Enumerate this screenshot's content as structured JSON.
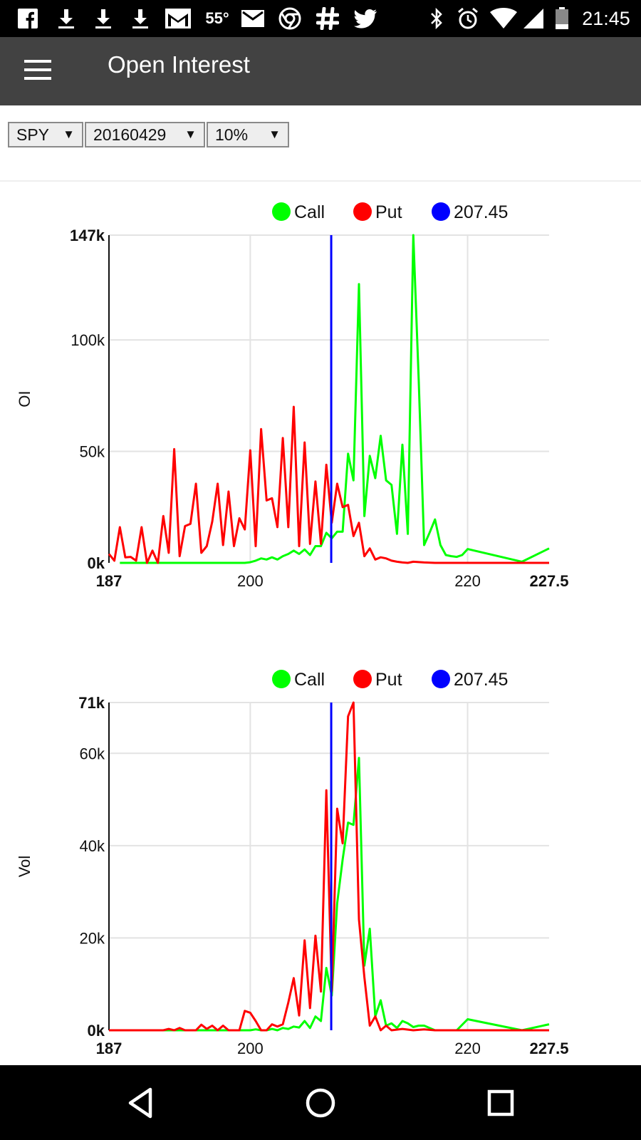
{
  "status_bar": {
    "left_icons": [
      "facebook-icon",
      "download-icon",
      "download-icon",
      "download-icon",
      "gmail-icon"
    ],
    "temperature": "55°",
    "right_icons": [
      "mail-icon",
      "chrome-icon",
      "slack-icon",
      "twitter-icon",
      "bluetooth-icon",
      "alarm-icon",
      "wifi-icon",
      "signal-icon",
      "battery-icon"
    ],
    "time": "21:45"
  },
  "app_bar": {
    "title": "Open Interest"
  },
  "filters": {
    "symbol": "SPY",
    "expiry": "20160429",
    "range": "10%"
  },
  "colors": {
    "call": "#00ff00",
    "put": "#ff0000",
    "price": "#0000ff"
  },
  "chart_data": [
    {
      "type": "line",
      "ylabel": "OI",
      "legend": [
        "Call",
        "Put",
        "207.45"
      ],
      "xlim": [
        187,
        227.5
      ],
      "ylim": [
        0,
        147000
      ],
      "x_ticks": [
        {
          "value": 187,
          "label": "187",
          "bold": true
        },
        {
          "value": 200,
          "label": "200",
          "bold": false
        },
        {
          "value": 220,
          "label": "220",
          "bold": false
        },
        {
          "value": 227.5,
          "label": "227.5",
          "bold": true
        }
      ],
      "y_ticks": [
        {
          "value": 0,
          "label": "0k",
          "bold": true
        },
        {
          "value": 50000,
          "label": "50k",
          "bold": false
        },
        {
          "value": 100000,
          "label": "100k",
          "bold": false
        },
        {
          "value": 147000,
          "label": "147k",
          "bold": true
        }
      ],
      "reference_line": {
        "name": "207.45",
        "x": 207.45
      },
      "series": [
        {
          "name": "Call",
          "x": [
            188,
            188.5,
            189,
            189.5,
            190,
            190.5,
            191,
            191.5,
            192,
            192.5,
            193,
            193.5,
            194,
            194.5,
            195,
            195.5,
            196,
            196.5,
            197,
            197.5,
            198,
            198.5,
            199,
            199.5,
            200,
            200.5,
            201,
            201.5,
            202,
            202.5,
            203,
            203.5,
            204,
            204.5,
            205,
            205.5,
            206,
            206.5,
            207,
            207.5,
            208,
            208.5,
            209,
            209.5,
            210,
            210.5,
            211,
            211.5,
            212,
            212.5,
            213,
            213.5,
            214,
            214.5,
            215,
            215.5,
            216,
            216.5,
            217,
            217.5,
            218,
            218.5,
            219,
            219.5,
            220,
            225,
            227.5
          ],
          "values": [
            0,
            0,
            0,
            0,
            0,
            0,
            0,
            0,
            0,
            0,
            0,
            0,
            0,
            0,
            0,
            0,
            0,
            0,
            0,
            0,
            0,
            0,
            0,
            0,
            300,
            1000,
            2000,
            1500,
            2500,
            1500,
            3000,
            4000,
            5500,
            4000,
            6000,
            3500,
            7500,
            7500,
            13500,
            11000,
            14000,
            14000,
            49000,
            37000,
            125000,
            21000,
            48000,
            38000,
            57000,
            37000,
            35000,
            13000,
            53000,
            13000,
            147000,
            82000,
            8000,
            13500,
            19500,
            8000,
            3500,
            3000,
            2700,
            3500,
            6200,
            500,
            6500
          ]
        },
        {
          "name": "Put",
          "x": [
            187,
            187.5,
            188,
            188.5,
            189,
            189.5,
            190,
            190.5,
            191,
            191.5,
            192,
            192.5,
            193,
            193.5,
            194,
            194.5,
            195,
            195.5,
            196,
            196.5,
            197,
            197.5,
            198,
            198.5,
            199,
            199.5,
            200,
            200.5,
            201,
            201.5,
            202,
            202.5,
            203,
            203.5,
            204,
            204.5,
            205,
            205.5,
            206,
            206.5,
            207,
            207.5,
            208,
            208.5,
            209,
            209.5,
            210,
            210.5,
            211,
            211.5,
            212,
            212.5,
            213,
            213.5,
            214,
            214.5,
            215,
            216,
            217,
            218,
            219,
            220,
            227.5
          ],
          "values": [
            4000,
            1000,
            16000,
            2500,
            2700,
            1000,
            16000,
            0,
            5500,
            0,
            21000,
            4500,
            51000,
            3000,
            16500,
            17500,
            35500,
            4500,
            7500,
            18500,
            35500,
            8000,
            32000,
            7500,
            20000,
            15000,
            50500,
            7500,
            60000,
            28000,
            29000,
            16000,
            56000,
            16000,
            70000,
            7500,
            54000,
            8500,
            36500,
            8500,
            44000,
            18000,
            35500,
            25000,
            26000,
            12000,
            18000,
            3000,
            6500,
            1500,
            2500,
            2000,
            1000,
            500,
            200,
            0,
            500,
            200,
            0,
            0,
            0,
            0,
            0
          ]
        }
      ]
    },
    {
      "type": "line",
      "ylabel": "Vol",
      "legend": [
        "Call",
        "Put",
        "207.45"
      ],
      "xlim": [
        187,
        227.5
      ],
      "ylim": [
        0,
        71000
      ],
      "x_ticks": [
        {
          "value": 187,
          "label": "187",
          "bold": true
        },
        {
          "value": 200,
          "label": "200",
          "bold": false
        },
        {
          "value": 220,
          "label": "220",
          "bold": false
        },
        {
          "value": 227.5,
          "label": "227.5",
          "bold": true
        }
      ],
      "y_ticks": [
        {
          "value": 0,
          "label": "0k",
          "bold": true
        },
        {
          "value": 20000,
          "label": "20k",
          "bold": false
        },
        {
          "value": 40000,
          "label": "40k",
          "bold": false
        },
        {
          "value": 60000,
          "label": "60k",
          "bold": false
        },
        {
          "value": 71000,
          "label": "71k",
          "bold": true
        }
      ],
      "reference_line": {
        "name": "207.45",
        "x": 207.45
      },
      "series": [
        {
          "name": "Call",
          "x": [
            187,
            190,
            195,
            199,
            200,
            200.5,
            201,
            201.5,
            202,
            202.5,
            203,
            203.5,
            204,
            204.5,
            205,
            205.5,
            206,
            206.5,
            207,
            207.5,
            208,
            208.5,
            209,
            209.5,
            210,
            210.5,
            211,
            211.5,
            212,
            212.5,
            213,
            213.5,
            214,
            214.5,
            215,
            215.5,
            216,
            216.5,
            217,
            218,
            219,
            220,
            225,
            227.5
          ],
          "values": [
            0,
            0,
            0,
            0,
            0,
            200,
            0,
            0,
            300,
            0,
            500,
            300,
            800,
            600,
            2000,
            500,
            3000,
            2000,
            13500,
            7500,
            27500,
            37000,
            45000,
            44500,
            59000,
            14000,
            22000,
            3000,
            6500,
            1000,
            1500,
            500,
            2000,
            1500,
            700,
            1000,
            1000,
            500,
            0,
            0,
            0,
            2400,
            0,
            1300
          ]
        },
        {
          "name": "Put",
          "x": [
            187,
            188,
            189,
            190,
            190.5,
            191,
            191.5,
            192,
            192.5,
            193,
            193.5,
            194,
            194.5,
            195,
            195.5,
            196,
            196.5,
            197,
            197.5,
            198,
            198.5,
            199,
            199.5,
            200,
            200.5,
            201,
            201.5,
            202,
            202.5,
            203,
            203.5,
            204,
            204.5,
            205,
            205.5,
            206,
            206.5,
            207,
            207.5,
            208,
            208.5,
            209,
            209.5,
            210,
            210.5,
            211,
            211.5,
            212,
            212.5,
            213,
            214,
            215,
            216,
            217,
            218,
            220,
            227.5
          ],
          "values": [
            0,
            0,
            0,
            0,
            0,
            0,
            0,
            0,
            300,
            0,
            500,
            0,
            0,
            0,
            1200,
            300,
            1000,
            0,
            1000,
            0,
            0,
            0,
            4200,
            3800,
            2000,
            0,
            0,
            1300,
            800,
            1300,
            6000,
            11300,
            3200,
            19500,
            4800,
            20500,
            8400,
            52000,
            8500,
            48000,
            40500,
            68000,
            71000,
            24000,
            11500,
            1000,
            3000,
            0,
            1000,
            0,
            300,
            0,
            200,
            0,
            0,
            0,
            0
          ]
        }
      ]
    }
  ]
}
